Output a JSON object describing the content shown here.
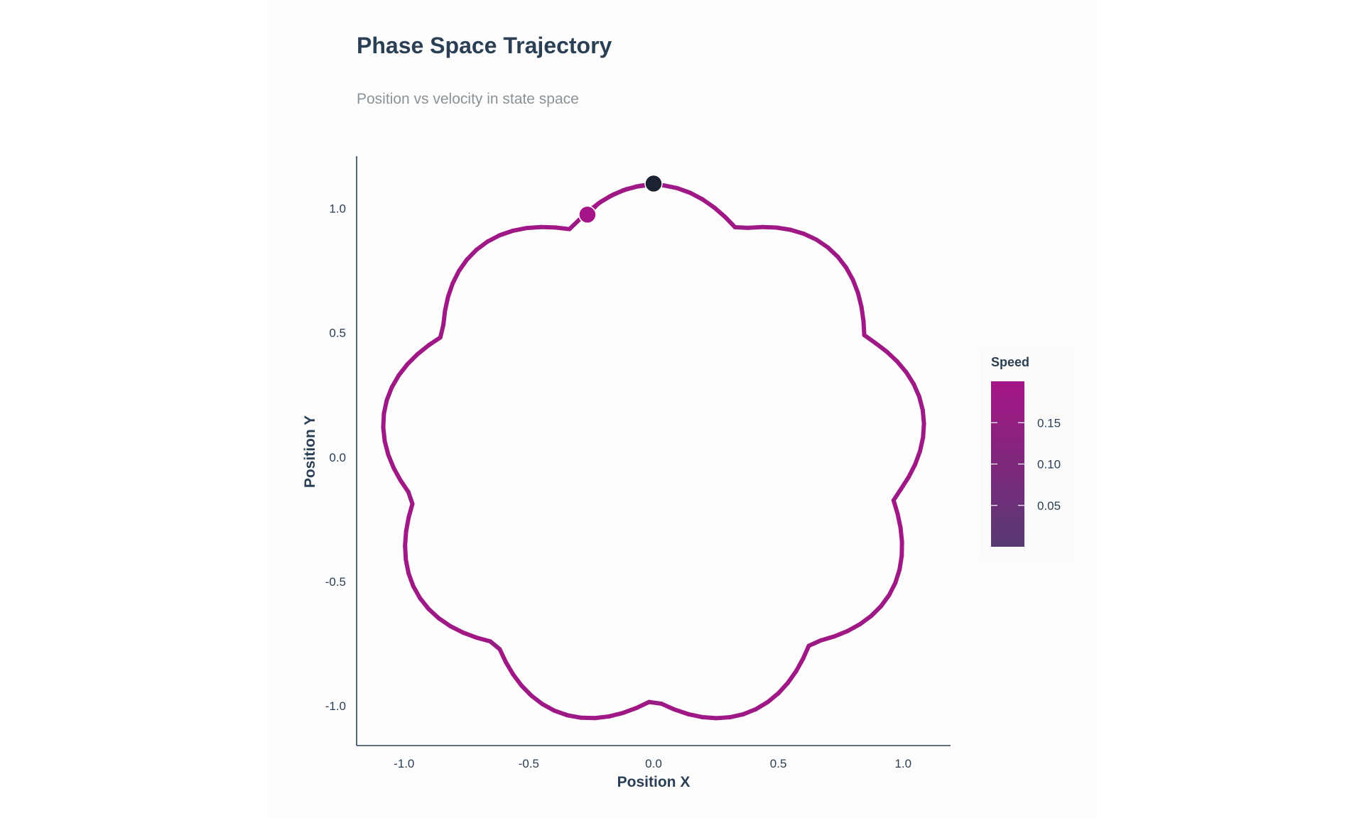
{
  "chart_data": {
    "type": "line",
    "title": "Phase Space Trajectory",
    "subtitle": "Position vs velocity in state space",
    "xlabel": "Position X",
    "ylabel": "Position Y",
    "xlim": [
      -1.19,
      1.19
    ],
    "ylim": [
      -1.16,
      1.21
    ],
    "x_ticks": [
      -1.0,
      -0.5,
      0.0,
      0.5,
      1.0
    ],
    "x_tick_labels": [
      "-1.0",
      "-0.5",
      "0.0",
      "0.5",
      "1.0"
    ],
    "y_ticks": [
      1.0,
      0.5,
      0.0,
      -0.5,
      -1.0
    ],
    "y_tick_labels": [
      "1.0",
      "0.5",
      "0.0",
      "-0.5",
      "-1.0"
    ],
    "grid": false,
    "color_scale": {
      "title": "Speed",
      "min": 0.0,
      "max": 0.2,
      "low_color": "#573a72",
      "high_color": "#a61587",
      "ticks": [
        0.15,
        0.1,
        0.05
      ],
      "tick_labels": [
        "0.15",
        "0.10",
        "0.05"
      ]
    },
    "lobes": 9,
    "base_radius": 0.975,
    "petal_amplitude": 0.12,
    "start_point": {
      "x": 0.0,
      "y": 1.1,
      "color": "#1b2232"
    },
    "end_point": {
      "x": -0.265,
      "y": 0.975,
      "color": "#a61587"
    }
  }
}
